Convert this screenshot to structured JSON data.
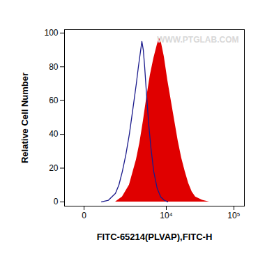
{
  "chart_data": {
    "type": "histogram_overlay",
    "xlabel": "FITC-65214(PLVAP),FITC-H",
    "ylabel": "Relative Cell Number",
    "annotations": [
      "WWW.PTGLAB.COM"
    ],
    "log": "x",
    "xlim": [
      -640,
      142000
    ],
    "xticks": [
      0,
      {
        "value": 10000,
        "label": "10⁴"
      },
      {
        "value": 100000,
        "label": "10⁵"
      }
    ],
    "ylim": [
      -2.5,
      102
    ],
    "yticks": [
      0,
      20,
      40,
      60,
      80,
      100
    ],
    "series": [
      {
        "type": "area",
        "color": "#e00000",
        "x": [
          1280,
          1790,
          2440,
          3260,
          3740,
          4290,
          4890,
          5580,
          6350,
          7210,
          7780,
          8390,
          9270,
          10500,
          11860,
          13390,
          15120,
          17050,
          19230,
          21670,
          24410,
          27480,
          34790,
          44030
        ],
        "values": [
          0,
          3,
          10,
          25,
          35,
          48,
          62,
          75,
          85,
          93,
          97,
          94,
          86,
          72,
          60,
          48,
          36,
          26,
          18,
          11,
          6,
          3,
          1,
          0
        ]
      },
      {
        "type": "line",
        "color": "#1a1a8c",
        "x": [
          550,
          870,
          1280,
          1520,
          1790,
          2100,
          2440,
          2830,
          3260,
          3540,
          3740,
          4060,
          4290,
          4520,
          4890,
          5300,
          5730,
          6350,
          7210,
          8180,
          9270,
          10500
        ],
        "values": [
          0,
          1,
          5,
          10,
          18,
          28,
          40,
          55,
          70,
          80,
          86,
          95,
          90,
          80,
          62,
          45,
          32,
          18,
          8,
          3,
          1,
          0
        ]
      }
    ]
  }
}
